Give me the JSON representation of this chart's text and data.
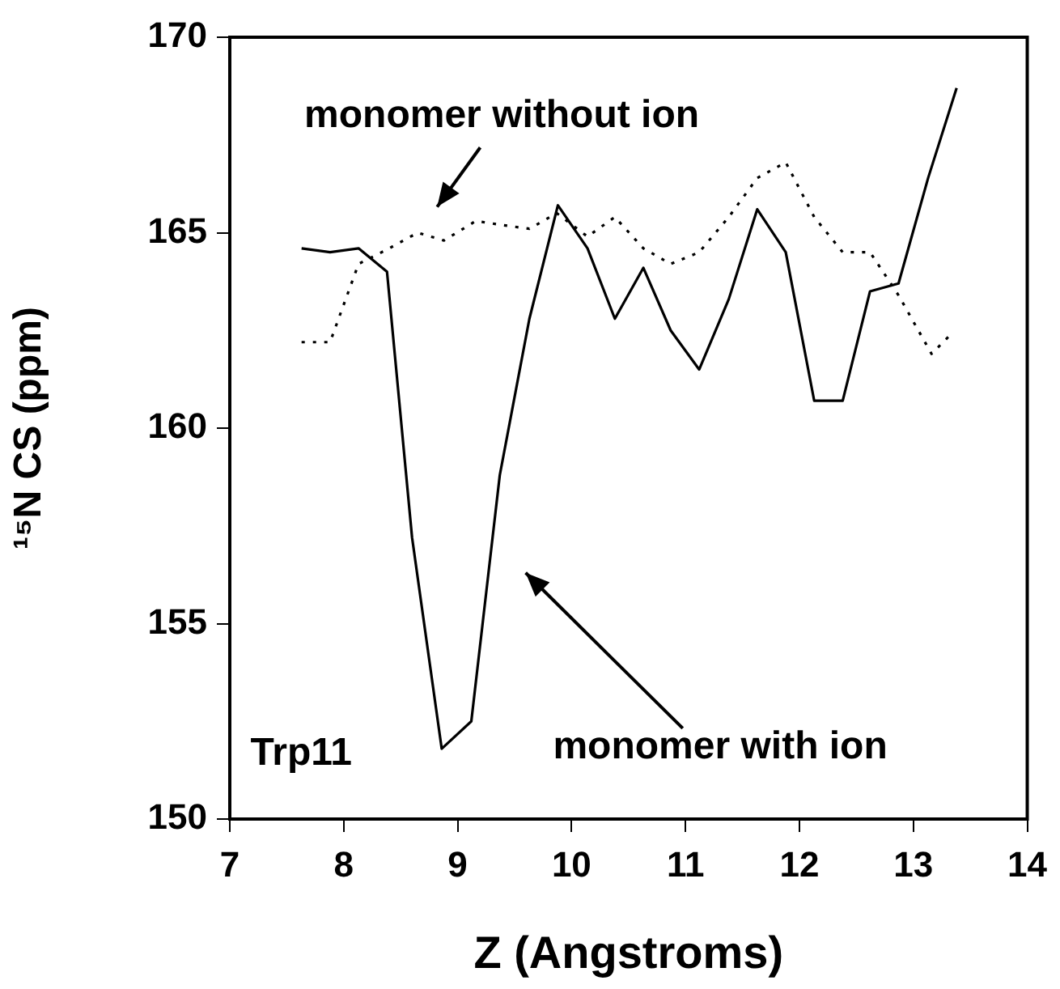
{
  "chart_data": {
    "type": "line",
    "xlabel": "Z (Angstroms)",
    "ylabel": "¹⁵N CS (ppm)",
    "xlim": [
      7,
      14
    ],
    "xticks": [
      7,
      8,
      9,
      10,
      11,
      12,
      13,
      14
    ],
    "ylim": [
      150,
      170
    ],
    "yticks": [
      150,
      155,
      160,
      165,
      170
    ],
    "grid": false,
    "legend": false,
    "marker": "none",
    "series": [
      {
        "color": "#000000",
        "line_style": "solid",
        "x": [
          7.63,
          7.88,
          8.13,
          8.38,
          8.6,
          8.86,
          9.12,
          9.37,
          9.63,
          9.88,
          10.14,
          10.38,
          10.63,
          10.87,
          11.12,
          11.38,
          11.63,
          11.88,
          12.13,
          12.38,
          12.62,
          12.87,
          13.13,
          13.38
        ],
        "values": [
          164.6,
          164.5,
          164.6,
          164.0,
          157.2,
          151.8,
          152.5,
          158.8,
          162.8,
          165.7,
          164.6,
          162.8,
          164.1,
          162.5,
          161.5,
          163.3,
          165.6,
          164.5,
          160.7,
          160.7,
          163.5,
          163.7,
          166.4,
          168.7
        ]
      },
      {
        "color": "#000000",
        "line_style": "dotted",
        "x": [
          7.63,
          7.88,
          8.13,
          8.4,
          8.65,
          8.88,
          9.16,
          9.38,
          9.63,
          9.87,
          10.14,
          10.38,
          10.63,
          10.87,
          11.12,
          11.38,
          11.63,
          11.88,
          12.13,
          12.38,
          12.62,
          12.87,
          13.16,
          13.33
        ],
        "values": [
          162.2,
          162.2,
          164.2,
          164.6,
          165.0,
          164.8,
          165.3,
          165.2,
          165.1,
          165.5,
          164.9,
          165.4,
          164.6,
          164.2,
          164.5,
          165.4,
          166.4,
          166.8,
          165.4,
          164.5,
          164.5,
          163.4,
          161.9,
          162.4
        ]
      }
    ],
    "annotations": [
      "monomer without ion",
      "monomer with ion",
      "Trp11"
    ]
  }
}
